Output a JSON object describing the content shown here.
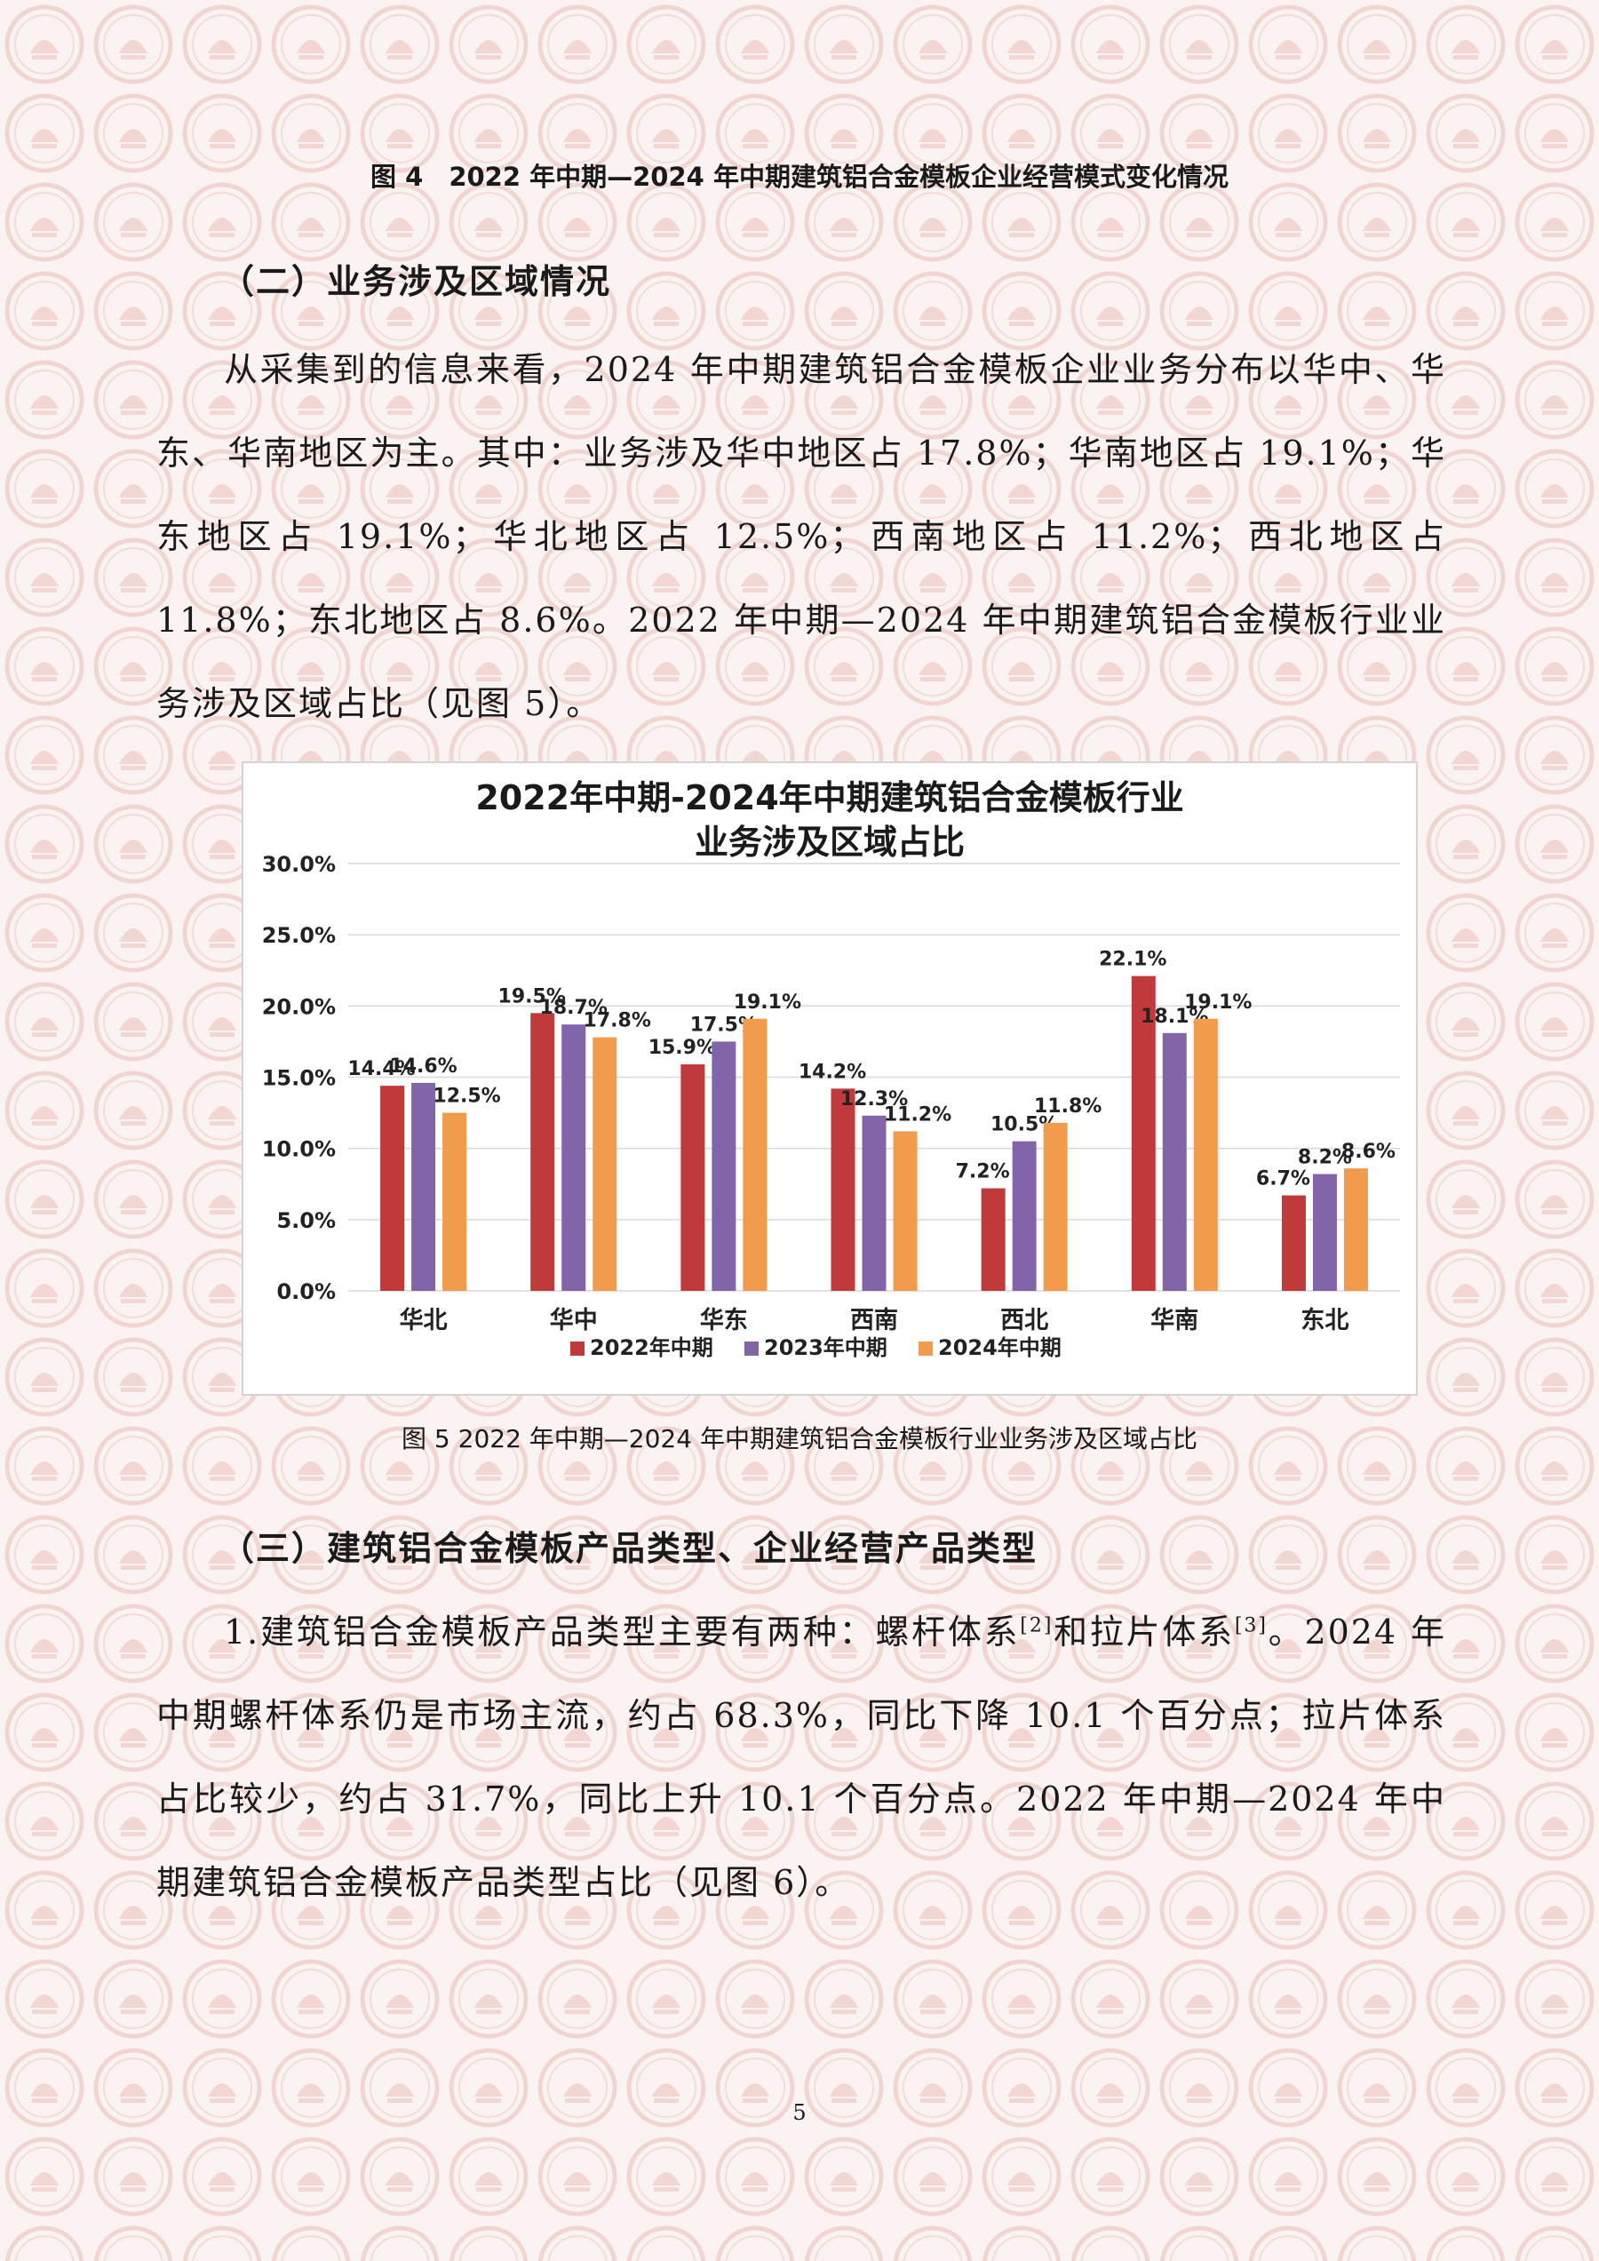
{
  "figure4_caption": "图 4　2022 年中期—2024 年中期建筑铝合金模板企业经营模式变化情况",
  "section2": {
    "heading": "（二）业务涉及区域情况",
    "paragraph": "从采集到的信息来看，2024 年中期建筑铝合金模板企业业务分布以华中、华东、华南地区为主。其中：业务涉及华中地区占 17.8%；华南地区占 19.1%；华东地区占 19.1%；华北地区占 12.5%；西南地区占 11.2%；西北地区占 11.8%；东北地区占 8.6%。2022 年中期—2024 年中期建筑铝合金模板行业业务涉及区域占比（见图 5）。"
  },
  "chart_data": {
    "type": "bar",
    "title_line1": "2022年中期-2024年中期建筑铝合金模板行业",
    "title_line2": "业务涉及区域占比",
    "categories": [
      "华北",
      "华中",
      "华东",
      "西南",
      "西北",
      "华南",
      "东北"
    ],
    "series": [
      {
        "name": "2022年中期",
        "color": "#c0393b",
        "values": [
          14.4,
          19.5,
          15.9,
          14.2,
          7.2,
          22.1,
          6.7
        ],
        "labels": [
          "14.4%",
          "19.5%",
          "15.9%",
          "14.2%",
          "7.2%",
          "22.1%",
          "6.7%"
        ]
      },
      {
        "name": "2023年中期",
        "color": "#8165a8",
        "values": [
          14.6,
          18.7,
          17.5,
          12.3,
          10.5,
          18.1,
          8.2
        ],
        "labels": [
          "14.6%",
          "18.7%",
          "17.5%",
          "12.3%",
          "10.5%",
          "18.1%",
          "8.2%"
        ]
      },
      {
        "name": "2024年中期",
        "color": "#f19b4d",
        "values": [
          12.5,
          17.8,
          19.1,
          11.2,
          11.8,
          19.1,
          8.6
        ],
        "labels": [
          "12.5%",
          "17.8%",
          "19.1%",
          "11.2%",
          "11.8%",
          "19.1%",
          "8.6%"
        ]
      }
    ],
    "ylim": [
      0,
      30
    ],
    "yticks": [
      "0.0%",
      "5.0%",
      "10.0%",
      "15.0%",
      "20.0%",
      "25.0%",
      "30.0%"
    ],
    "grid": true,
    "legend_position": "bottom"
  },
  "figure5_caption": "图 5 2022 年中期—2024 年中期建筑铝合金模板行业业务涉及区域占比",
  "section3": {
    "heading": "（三）建筑铝合金模板产品类型、企业经营产品类型",
    "paragraph_before_ref1": "1.建筑铝合金模板产品类型主要有两种：螺杆体系",
    "ref1": "[2]",
    "paragraph_between_refs": "和拉片体系",
    "ref2": "[3]",
    "paragraph_after_ref2": "。2024 年中期螺杆体系仍是市场主流，约占 68.3%，同比下降 10.1 个百分点；拉片体系占比较少，约占 31.7%，同比上升 10.1 个百分点。2022 年中期—2024 年中期建筑铝合金模板产品类型占比（见图 6）。"
  },
  "page_number": "5"
}
